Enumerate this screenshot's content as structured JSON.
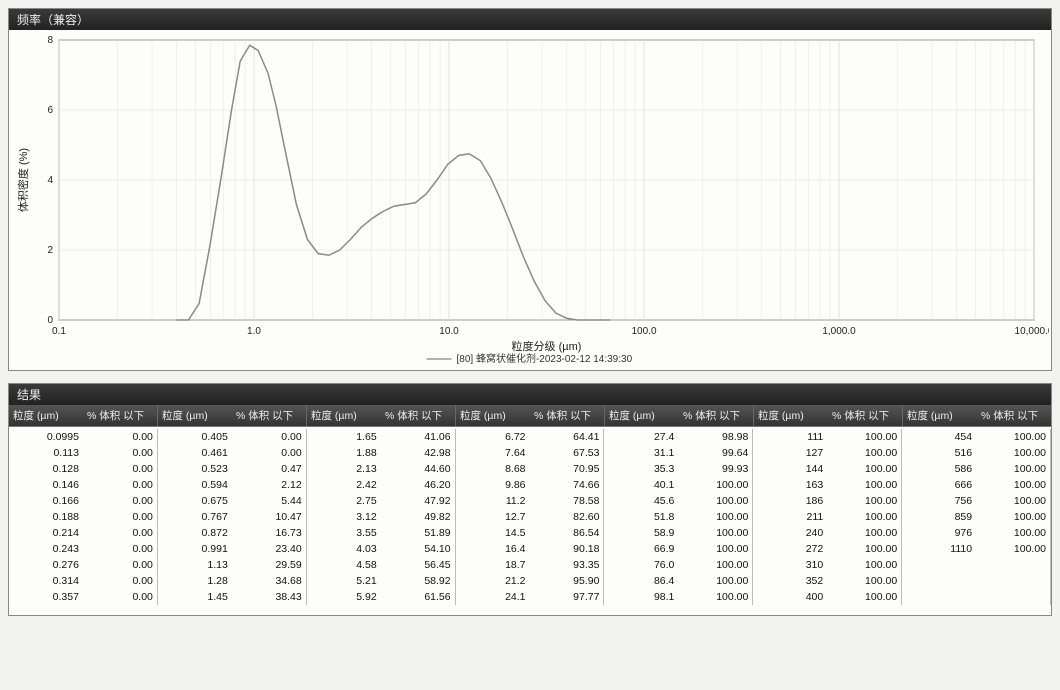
{
  "chart_panel": {
    "title": "频率（兼容）",
    "xlabel": "粒度分级 (µm)",
    "ylabel": "体积密度 (%)",
    "legend": "[80] 蜂窝状催化剂-2023-02-12 14:39:30",
    "type": "line",
    "xscale": "log",
    "xlim": [
      0.1,
      10000
    ],
    "ylim": [
      0,
      8
    ],
    "x_ticks": [
      0.1,
      1.0,
      10.0,
      100.0,
      1000.0,
      10000.0
    ],
    "x_tick_labels": [
      "0.1",
      "1.0",
      "10.0",
      "100.0",
      "1,000.0",
      "10,000.0"
    ],
    "y_ticks": [
      0,
      2,
      4,
      6,
      8
    ],
    "line_color": "#8a8a88",
    "line_width": 1.5,
    "grid_color": "#dcdcd8",
    "axis_color": "#333333",
    "background": "#fdfdfc",
    "points": [
      [
        0.4,
        0.0
      ],
      [
        0.461,
        0.0
      ],
      [
        0.523,
        0.47
      ],
      [
        0.594,
        2.12
      ],
      [
        0.675,
        4.0
      ],
      [
        0.767,
        6.0
      ],
      [
        0.85,
        7.4
      ],
      [
        0.95,
        7.85
      ],
      [
        1.05,
        7.7
      ],
      [
        1.18,
        7.05
      ],
      [
        1.3,
        6.1
      ],
      [
        1.45,
        4.8
      ],
      [
        1.65,
        3.3
      ],
      [
        1.88,
        2.3
      ],
      [
        2.13,
        1.9
      ],
      [
        2.42,
        1.85
      ],
      [
        2.75,
        2.0
      ],
      [
        3.12,
        2.3
      ],
      [
        3.55,
        2.65
      ],
      [
        4.03,
        2.9
      ],
      [
        4.58,
        3.1
      ],
      [
        5.21,
        3.25
      ],
      [
        5.92,
        3.3
      ],
      [
        6.72,
        3.35
      ],
      [
        7.64,
        3.6
      ],
      [
        8.68,
        4.0
      ],
      [
        9.86,
        4.45
      ],
      [
        11.2,
        4.7
      ],
      [
        12.7,
        4.75
      ],
      [
        14.5,
        4.55
      ],
      [
        16.4,
        4.05
      ],
      [
        18.7,
        3.35
      ],
      [
        21.2,
        2.6
      ],
      [
        24.1,
        1.8
      ],
      [
        27.4,
        1.1
      ],
      [
        31.1,
        0.55
      ],
      [
        35.3,
        0.2
      ],
      [
        40.1,
        0.05
      ],
      [
        45.6,
        0.0
      ],
      [
        51.8,
        0.0
      ],
      [
        58.9,
        0.0
      ],
      [
        66.9,
        0.0
      ]
    ]
  },
  "results_panel": {
    "title": "结果",
    "col_size_label": "粒度 (µm)",
    "col_pct_label": "% 体积 以下",
    "num_groups": 7,
    "text_color": "#111111",
    "header_bg_top": "#555555",
    "header_bg_bottom": "#333333",
    "data": [
      [
        0.0995,
        0.0,
        0.405,
        0.0,
        1.65,
        41.06,
        6.72,
        64.41,
        27.4,
        98.98,
        111,
        100.0,
        454,
        100.0
      ],
      [
        0.113,
        0.0,
        0.461,
        0.0,
        1.88,
        42.98,
        7.64,
        67.53,
        31.1,
        99.64,
        127,
        100.0,
        516,
        100.0
      ],
      [
        0.128,
        0.0,
        0.523,
        0.47,
        2.13,
        44.6,
        8.68,
        70.95,
        35.3,
        99.93,
        144,
        100.0,
        586,
        100.0
      ],
      [
        0.146,
        0.0,
        0.594,
        2.12,
        2.42,
        46.2,
        9.86,
        74.66,
        40.1,
        100.0,
        163,
        100.0,
        666,
        100.0
      ],
      [
        0.166,
        0.0,
        0.675,
        5.44,
        2.75,
        47.92,
        11.2,
        78.58,
        45.6,
        100.0,
        186,
        100.0,
        756,
        100.0
      ],
      [
        0.188,
        0.0,
        0.767,
        10.47,
        3.12,
        49.82,
        12.7,
        82.6,
        51.8,
        100.0,
        211,
        100.0,
        859,
        100.0
      ],
      [
        0.214,
        0.0,
        0.872,
        16.73,
        3.55,
        51.89,
        14.5,
        86.54,
        58.9,
        100.0,
        240,
        100.0,
        976,
        100.0
      ],
      [
        0.243,
        0.0,
        0.991,
        23.4,
        4.03,
        54.1,
        16.4,
        90.18,
        66.9,
        100.0,
        272,
        100.0,
        1110,
        100.0
      ],
      [
        0.276,
        0.0,
        1.13,
        29.59,
        4.58,
        56.45,
        18.7,
        93.35,
        76.0,
        100.0,
        310,
        100.0,
        null,
        null
      ],
      [
        0.314,
        0.0,
        1.28,
        34.68,
        5.21,
        58.92,
        21.2,
        95.9,
        86.4,
        100.0,
        352,
        100.0,
        null,
        null
      ],
      [
        0.357,
        0.0,
        1.45,
        38.43,
        5.92,
        61.56,
        24.1,
        97.77,
        98.1,
        100.0,
        400,
        100.0,
        null,
        null
      ]
    ]
  }
}
